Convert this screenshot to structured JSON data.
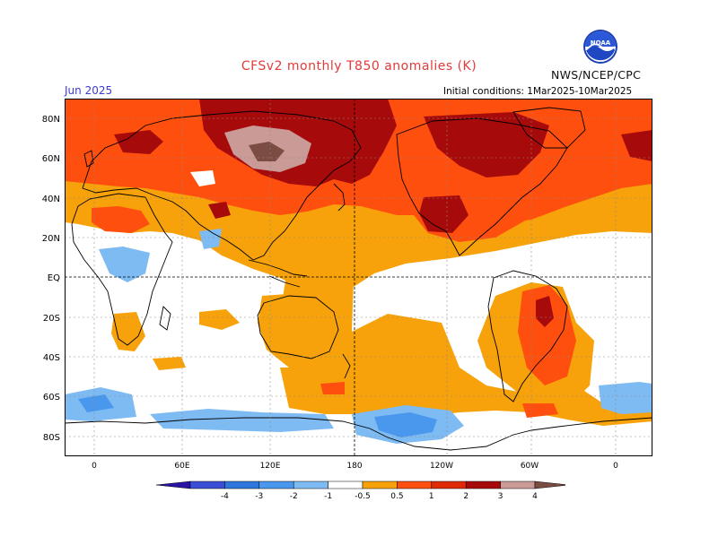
{
  "title": "CFSv2 monthly T850 anomalies (K)",
  "period": "Jun 2025",
  "initial_conditions": "Initial conditions: 1Mar2025-10Mar2025",
  "agency": "NWS/NCEP/CPC",
  "logo_text": "NOAA",
  "lat_labels": [
    "80N",
    "60N",
    "40N",
    "20N",
    "EQ",
    "20S",
    "40S",
    "60S",
    "80S"
  ],
  "lon_labels": [
    "0",
    "60E",
    "120E",
    "180",
    "120W",
    "60W",
    "0"
  ],
  "legend": {
    "ticks": [
      "-4",
      "-3",
      "-2",
      "-1",
      "-0.5",
      "0.5",
      "1",
      "2",
      "3",
      "4"
    ],
    "colors": [
      "#2a14a8",
      "#3a4fd6",
      "#2f77dd",
      "#4a98ee",
      "#7fbbf3",
      "#ffffff",
      "#f7a20a",
      "#ff4f0f",
      "#e02a07",
      "#a70a0a",
      "#c99a96",
      "#7a4c42"
    ]
  },
  "colors": {
    "orange": "#f7a20a",
    "red_orange": "#ff4f0f",
    "red": "#e02a07",
    "dark_red": "#a70a0a",
    "pink_brown": "#c99a96",
    "brown": "#7a4c42",
    "light_blue": "#7fbbf3",
    "blue": "#4a98ee"
  }
}
